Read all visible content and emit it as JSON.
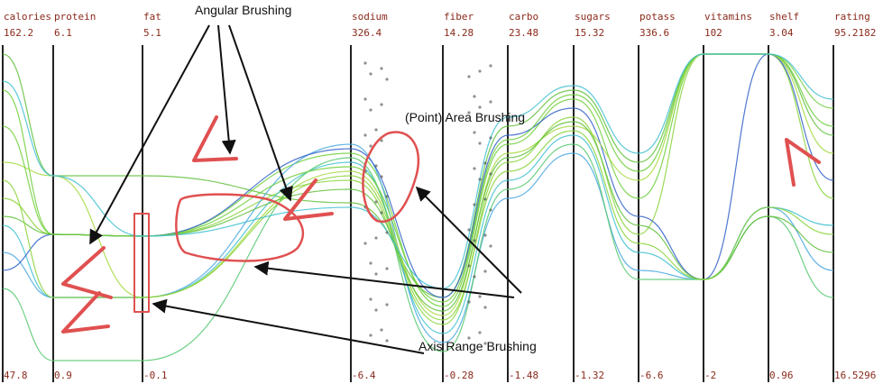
{
  "axes": [
    {
      "name": "calories",
      "max": "162.2",
      "min": "47.8"
    },
    {
      "name": "protein",
      "max": "6.1",
      "min": "0.9"
    },
    {
      "name": "fat",
      "max": "5.1",
      "min": "-0.1"
    },
    {
      "name": "sodium",
      "max": "326.4",
      "min": "-6.4"
    },
    {
      "name": "fiber",
      "max": "14.28",
      "min": "-0.28"
    },
    {
      "name": "carbo",
      "max": "23.48",
      "min": "-1.48"
    },
    {
      "name": "sugars",
      "max": "15.32",
      "min": "-1.32"
    },
    {
      "name": "potass",
      "max": "336.6",
      "min": "-6.6"
    },
    {
      "name": "vitamins",
      "max": "102",
      "min": "-2"
    },
    {
      "name": "shelf",
      "max": "3.04",
      "min": "0.96"
    },
    {
      "name": "rating",
      "max": "95.2182",
      "min": "16.5296"
    }
  ],
  "annotations": {
    "angular": "Angular Brushing",
    "area": "(Point) Area Brushing",
    "range": "Axis Range Brushing"
  },
  "colors": {
    "axis": "#222222",
    "label": "#8a2a1a",
    "brush": "#e05050",
    "green": "#5fbf3a",
    "cyan": "#40c0d0",
    "blue": "#3050c0"
  }
}
